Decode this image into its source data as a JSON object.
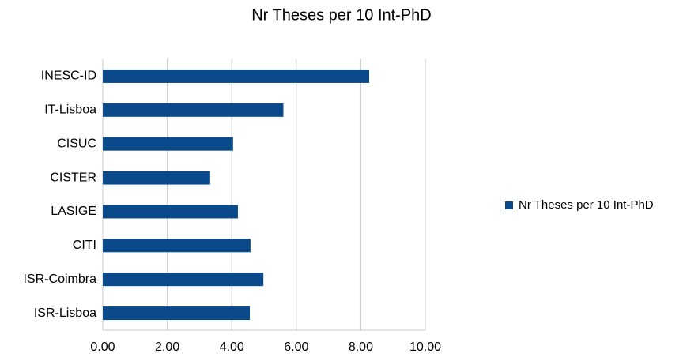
{
  "chart_data": {
    "type": "bar",
    "orientation": "horizontal",
    "title": "Nr Theses per 10 Int-PhD",
    "categories": [
      "INESC-ID",
      "IT-Lisboa",
      "CISUC",
      "CISTER",
      "LASIGE",
      "CITI",
      "ISR-Coimbra",
      "ISR-Lisboa"
    ],
    "series": [
      {
        "name": "Nr Theses per 10 Int-PhD",
        "color": "#0b4a8a",
        "values": [
          8.26,
          5.6,
          4.04,
          3.33,
          4.19,
          4.58,
          4.98,
          4.56
        ]
      }
    ],
    "xlim": [
      0,
      10
    ],
    "xticks": [
      {
        "value": 0,
        "label": "0.00"
      },
      {
        "value": 2,
        "label": "2.00"
      },
      {
        "value": 4,
        "label": "4.00"
      },
      {
        "value": 6,
        "label": "6.00"
      },
      {
        "value": 8,
        "label": "8.00"
      },
      {
        "value": 10,
        "label": "10.00"
      }
    ],
    "grid": true,
    "legend": "right"
  }
}
